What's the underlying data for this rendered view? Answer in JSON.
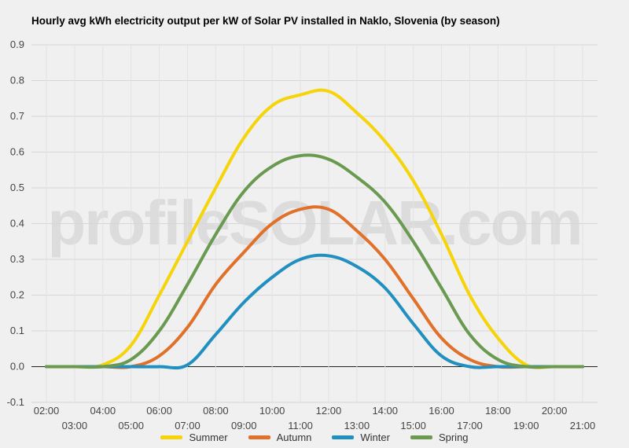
{
  "chart_data": {
    "type": "line",
    "title": "Hourly avg kWh electricity output per kW of Solar PV installed in Naklo, Slovenia (by season)",
    "watermark": "profileSOLAR.com",
    "xlabel": "",
    "ylabel": "",
    "ylim": [
      -0.1,
      0.9
    ],
    "yticks": [
      "0.9",
      "0.8",
      "0.7",
      "0.6",
      "0.5",
      "0.4",
      "0.3",
      "0.2",
      "0.1",
      "0.0",
      "-0.1"
    ],
    "ytick_values": [
      0.9,
      0.8,
      0.7,
      0.6,
      0.5,
      0.4,
      0.3,
      0.2,
      0.1,
      0.0,
      -0.1
    ],
    "x": [
      "02:00",
      "03:00",
      "04:00",
      "05:00",
      "06:00",
      "07:00",
      "08:00",
      "09:00",
      "10:00",
      "11:00",
      "12:00",
      "13:00",
      "14:00",
      "15:00",
      "16:00",
      "17:00",
      "18:00",
      "19:00",
      "20:00",
      "21:00"
    ],
    "grid": true,
    "legend_position": "bottom",
    "series": [
      {
        "name": "Summer",
        "color": "#f5d40a",
        "values": [
          0,
          0,
          0.005,
          0.06,
          0.2,
          0.35,
          0.5,
          0.64,
          0.73,
          0.76,
          0.77,
          0.71,
          0.63,
          0.52,
          0.37,
          0.2,
          0.08,
          0.005,
          0,
          0
        ]
      },
      {
        "name": "Autumn",
        "color": "#e0702a",
        "values": [
          0,
          0,
          0,
          0,
          0.03,
          0.11,
          0.23,
          0.32,
          0.4,
          0.44,
          0.44,
          0.38,
          0.3,
          0.19,
          0.08,
          0.02,
          0,
          0,
          0,
          0
        ]
      },
      {
        "name": "Winter",
        "color": "#2190c0",
        "values": [
          0,
          0,
          0,
          0,
          0,
          0.005,
          0.09,
          0.18,
          0.25,
          0.3,
          0.31,
          0.28,
          0.22,
          0.12,
          0.03,
          0,
          0,
          0,
          0,
          0
        ]
      },
      {
        "name": "Spring",
        "color": "#6a9a50",
        "values": [
          0,
          0,
          0,
          0.02,
          0.1,
          0.23,
          0.37,
          0.49,
          0.56,
          0.59,
          0.58,
          0.53,
          0.46,
          0.35,
          0.22,
          0.09,
          0.02,
          0,
          0,
          0
        ]
      }
    ]
  }
}
